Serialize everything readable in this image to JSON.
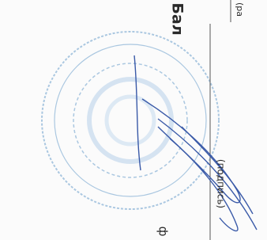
{
  "document": {
    "heading_fragment": "Бал",
    "caption_fragment": "(ра",
    "signature_caption": "(подпись)",
    "bottom_fragment": "ф"
  }
}
